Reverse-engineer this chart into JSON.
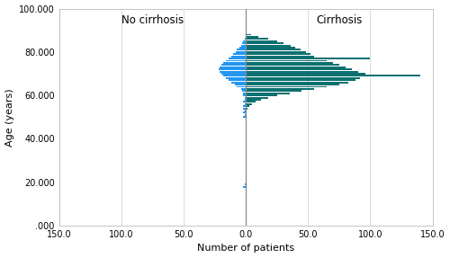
{
  "title_left": "No cirrhosis",
  "title_right": "Cirrhosis",
  "xlabel": "Number of patients",
  "ylabel": "Age (years)",
  "xlim": [
    -150,
    150
  ],
  "xticks": [
    -150,
    -100,
    -50,
    0,
    50,
    100,
    150
  ],
  "xtick_labels": [
    "150.0",
    "100.0",
    "50.0",
    "0.0",
    "50.0",
    "100.0",
    "150.0"
  ],
  "ylim": [
    0,
    100000
  ],
  "yticks": [
    0,
    20000,
    40000,
    60000,
    80000,
    100000
  ],
  "ytick_labels": [
    ".000",
    "20.000",
    "40.000",
    "60.000",
    "80.000",
    "100.000"
  ],
  "color_no_cirrhosis": "#2196F3",
  "color_cirrhosis": "#0d7070",
  "grid_color": "#cccccc",
  "center_line_color": "#888888",
  "ages": [
    18,
    19,
    20,
    21,
    22,
    23,
    24,
    25,
    26,
    27,
    28,
    29,
    30,
    31,
    32,
    33,
    34,
    35,
    36,
    37,
    38,
    39,
    40,
    41,
    42,
    43,
    44,
    45,
    46,
    47,
    48,
    49,
    50,
    51,
    52,
    53,
    54,
    55,
    56,
    57,
    58,
    59,
    60,
    61,
    62,
    63,
    64,
    65,
    66,
    67,
    68,
    69,
    70,
    71,
    72,
    73,
    74,
    75,
    76,
    77,
    78,
    79,
    80,
    81,
    82,
    83,
    84,
    85,
    86,
    87,
    88
  ],
  "no_cirrhosis": [
    2,
    1,
    0,
    0,
    0,
    0,
    0,
    0,
    0,
    0,
    0,
    0,
    0,
    0,
    0,
    0,
    0,
    0,
    0,
    0,
    0,
    0,
    0,
    0,
    0,
    0,
    0,
    0,
    0,
    0,
    0,
    0,
    2,
    1,
    2,
    1,
    2,
    2,
    1,
    2,
    1,
    1,
    2,
    2,
    3,
    4,
    7,
    9,
    12,
    14,
    16,
    18,
    20,
    21,
    22,
    21,
    20,
    18,
    16,
    14,
    12,
    10,
    8,
    7,
    5,
    4,
    3,
    2,
    1,
    0,
    0
  ],
  "cirrhosis": [
    0,
    0,
    0,
    0,
    0,
    0,
    0,
    0,
    0,
    0,
    0,
    0,
    0,
    0,
    0,
    0,
    0,
    0,
    0,
    0,
    0,
    0,
    0,
    0,
    0,
    0,
    0,
    0,
    0,
    0,
    0,
    0,
    0,
    0,
    0,
    0,
    1,
    3,
    5,
    8,
    12,
    18,
    25,
    35,
    45,
    55,
    65,
    75,
    82,
    88,
    92,
    140,
    96,
    90,
    85,
    80,
    75,
    70,
    65,
    100,
    55,
    52,
    48,
    44,
    40,
    36,
    30,
    25,
    18,
    10,
    4
  ],
  "bar_height_units": 800
}
